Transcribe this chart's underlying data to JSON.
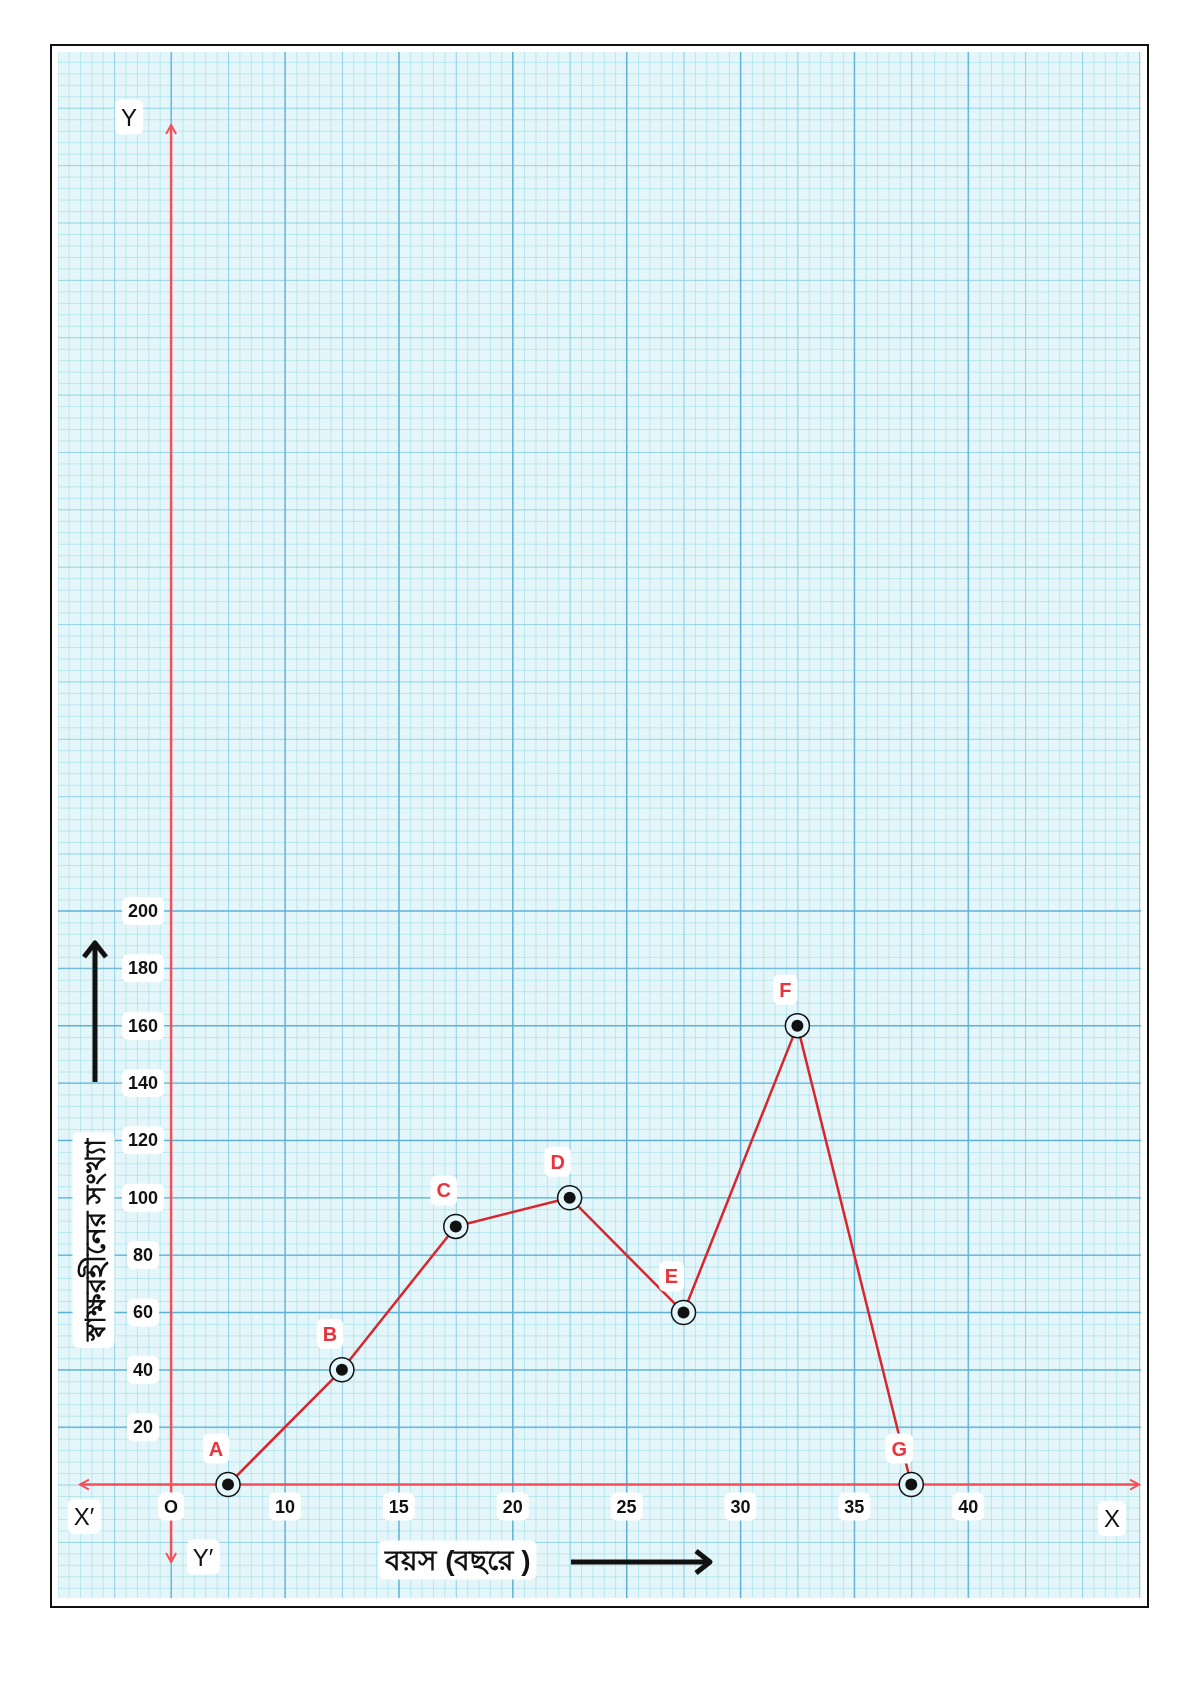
{
  "chart_data": {
    "type": "line",
    "xlabel": "বয়স (বছরে )",
    "ylabel": "স্বাক্ষরহীনের সংখ্যা",
    "x": [
      7.5,
      12.5,
      17.5,
      22.5,
      27.5,
      32.5,
      37.5
    ],
    "series": [
      {
        "color": "#d8262e",
        "values": [
          0,
          40,
          90,
          100,
          60,
          160,
          0
        ]
      }
    ],
    "xlim": [
      1,
      47.5
    ],
    "ylim": [
      -27,
      474
    ],
    "xticks": [
      {
        "value": 5,
        "label": "O"
      },
      10,
      15,
      20,
      25,
      30,
      35,
      40
    ],
    "yticks": [
      20,
      40,
      60,
      80,
      100,
      120,
      140,
      160,
      180,
      200
    ],
    "grid": true,
    "marker": "circle",
    "line_style": "solid",
    "annotations": [
      {
        "text": "A",
        "x": 7.5,
        "y": 0
      },
      {
        "text": "B",
        "x": 12.5,
        "y": 40
      },
      {
        "text": "C",
        "x": 17.5,
        "y": 90
      },
      {
        "text": "D",
        "x": 22.5,
        "y": 100
      },
      {
        "text": "E",
        "x": 27.5,
        "y": 60
      },
      {
        "text": "F",
        "x": 32.5,
        "y": 160
      },
      {
        "text": "G",
        "x": 37.5,
        "y": 0
      },
      "Y",
      "Y′",
      "X′",
      "X"
    ]
  }
}
